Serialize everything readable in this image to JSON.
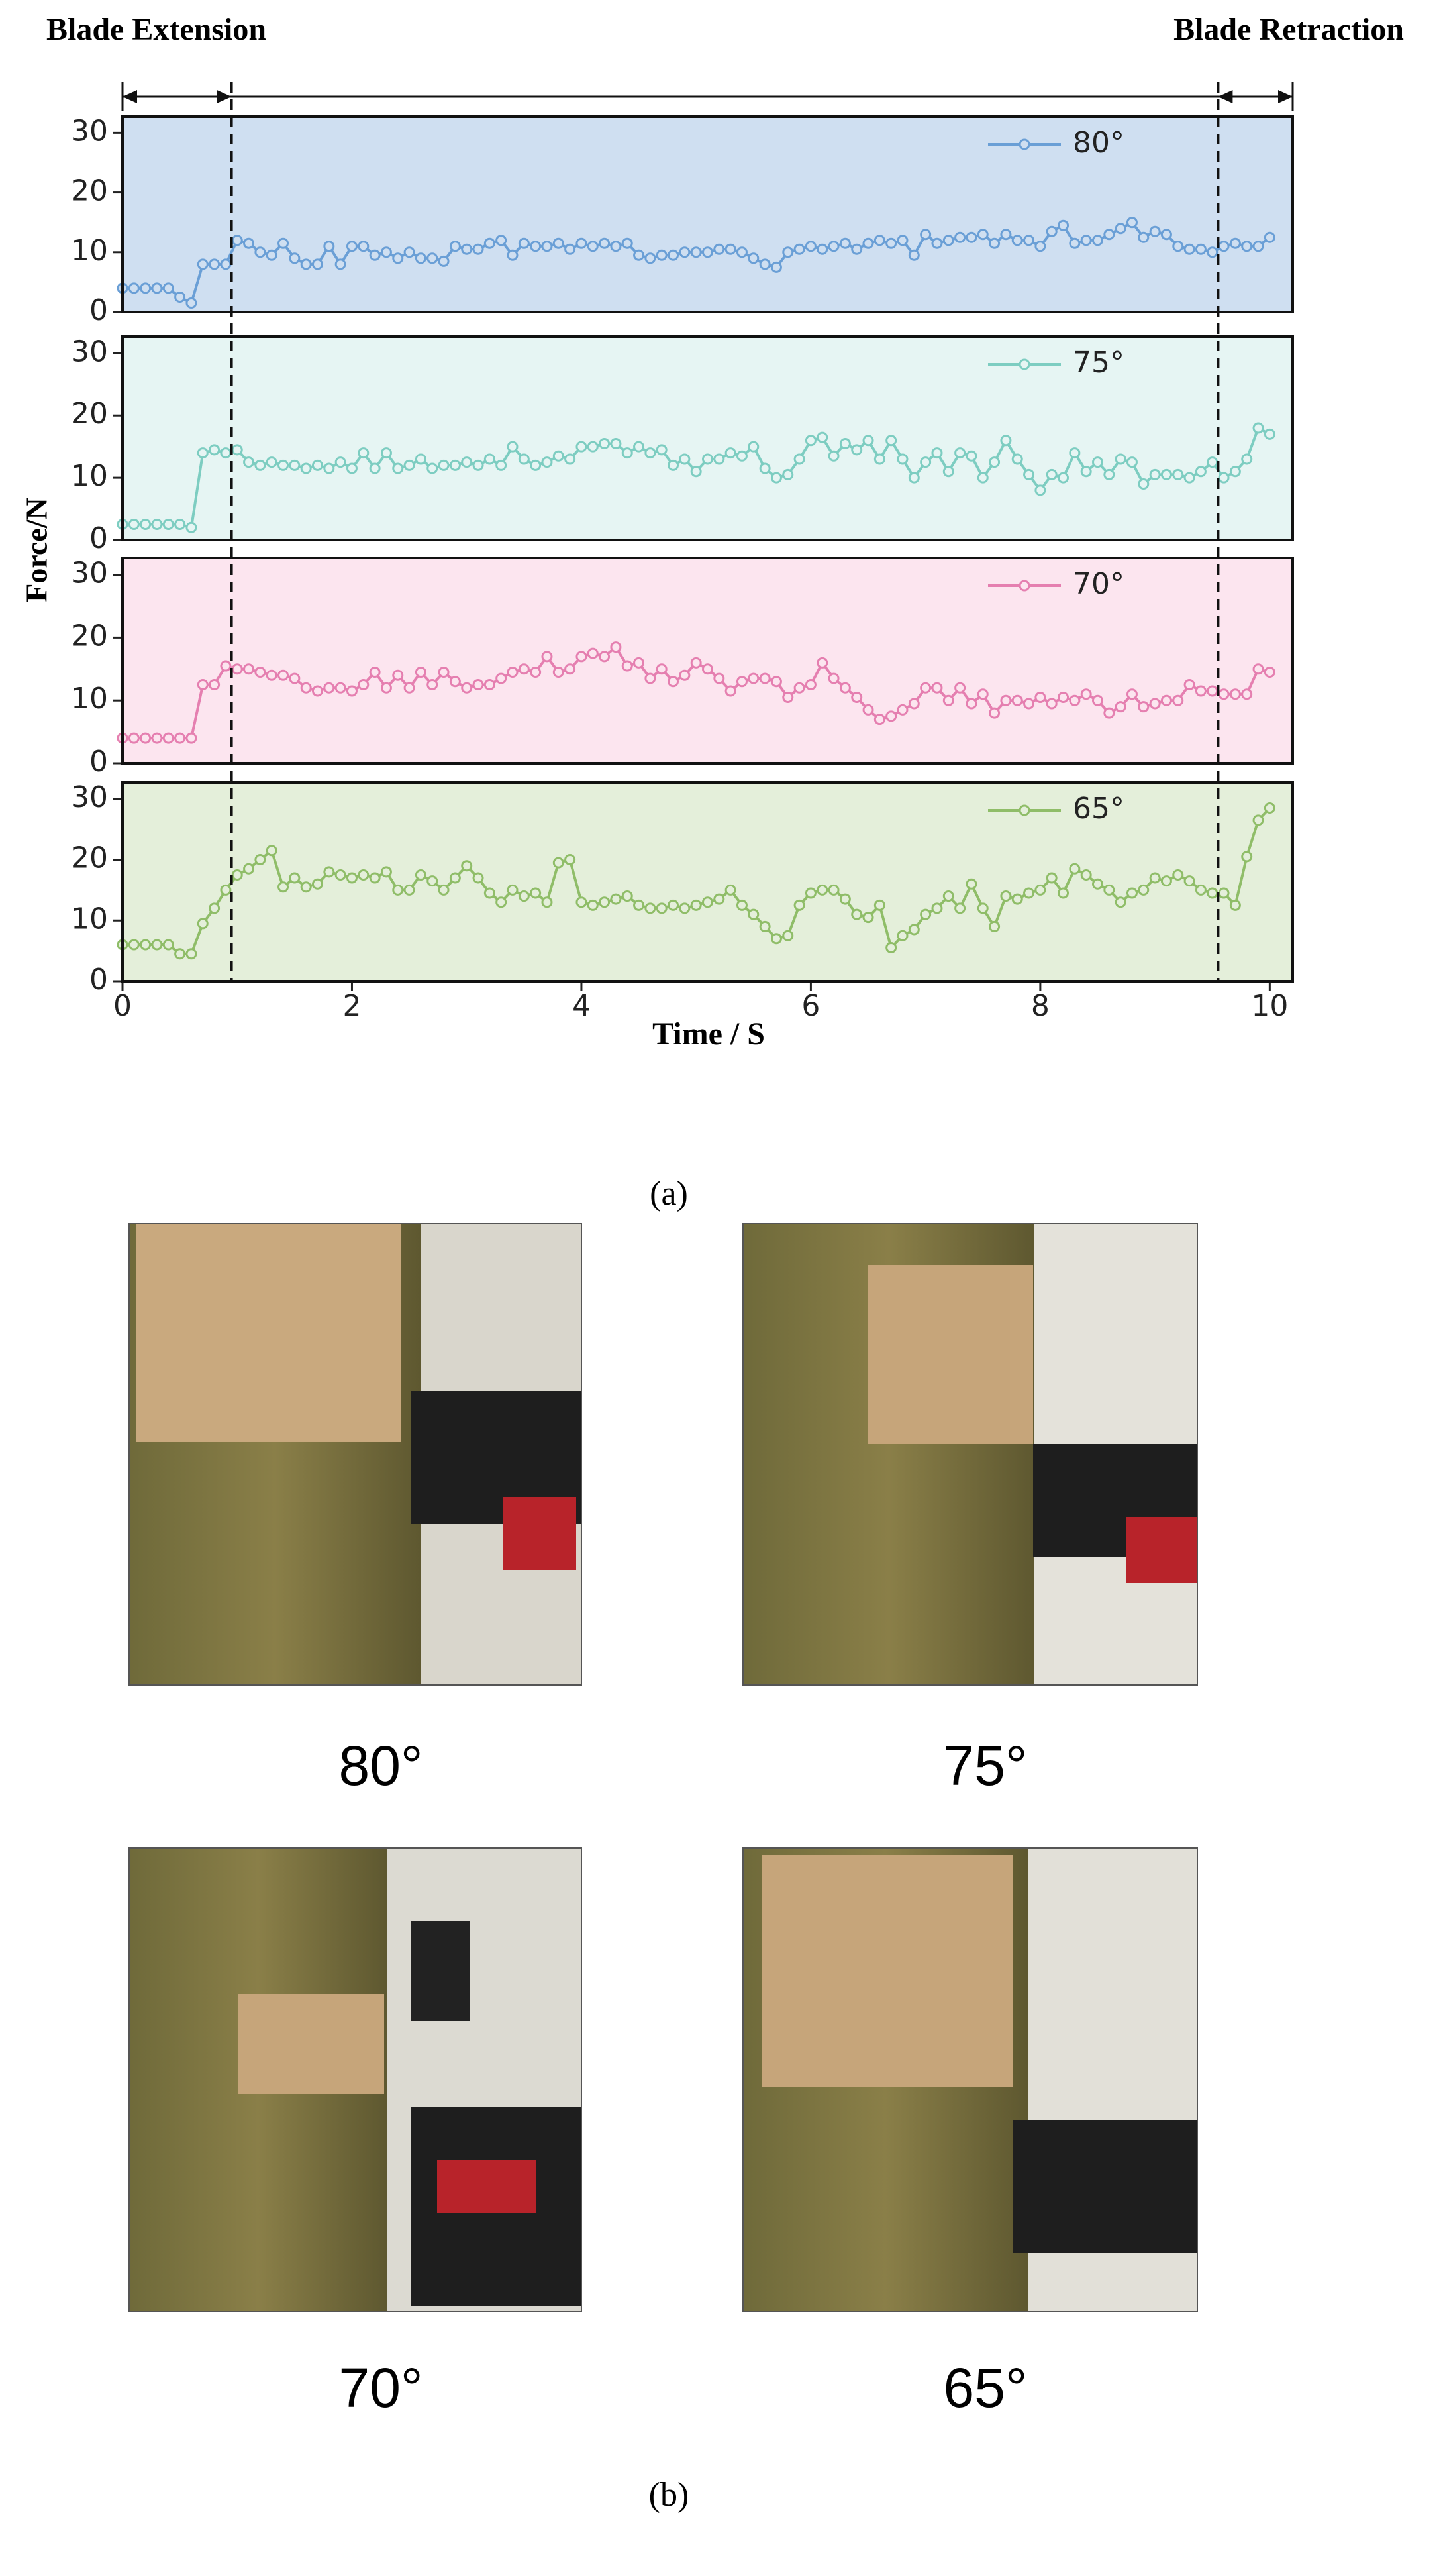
{
  "chart_data": [
    {
      "type": "line",
      "ylim": [
        0,
        32.7
      ],
      "yticks": [
        0,
        10,
        20,
        30
      ],
      "xlim": [
        0,
        10.2
      ],
      "legend": "upper right",
      "background": "#cfdff1",
      "x": [
        0,
        0.1,
        0.2,
        0.3,
        0.4,
        0.5,
        0.6,
        0.7,
        0.8,
        0.9,
        1,
        1.1,
        1.2,
        1.3,
        1.4,
        1.5,
        1.6,
        1.7,
        1.8,
        1.9,
        2,
        2.1,
        2.2,
        2.3,
        2.4,
        2.5,
        2.6,
        2.7,
        2.8,
        2.9,
        3,
        3.1,
        3.2,
        3.3,
        3.4,
        3.5,
        3.6,
        3.7,
        3.8,
        3.9,
        4,
        4.1,
        4.2,
        4.3,
        4.4,
        4.5,
        4.6,
        4.7,
        4.8,
        4.9,
        5,
        5.1,
        5.2,
        5.3,
        5.4,
        5.5,
        5.6,
        5.7,
        5.8,
        5.9,
        6,
        6.1,
        6.2,
        6.3,
        6.4,
        6.5,
        6.6,
        6.7,
        6.8,
        6.9,
        7,
        7.1,
        7.2,
        7.3,
        7.4,
        7.5,
        7.6,
        7.7,
        7.8,
        7.9,
        8,
        8.1,
        8.2,
        8.3,
        8.4,
        8.5,
        8.6,
        8.7,
        8.8,
        8.9,
        9,
        9.1,
        9.2,
        9.3,
        9.4,
        9.5,
        9.6,
        9.7,
        9.8,
        9.9,
        10
      ],
      "series": [
        {
          "name": "80°",
          "color": "#6a9fd6",
          "values": [
            4,
            4,
            4,
            4,
            4,
            2.5,
            1.5,
            8,
            8,
            8,
            12,
            11.5,
            10,
            9.5,
            11.5,
            9,
            8,
            8,
            11,
            8,
            11,
            11,
            9.5,
            10,
            9,
            10,
            9,
            9,
            8.5,
            11,
            10.5,
            10.5,
            11.5,
            12,
            9.5,
            11.5,
            11,
            11,
            11.5,
            10.5,
            11.5,
            11,
            11.5,
            11,
            11.5,
            9.5,
            9,
            9.5,
            9.5,
            10,
            10,
            10,
            10.5,
            10.5,
            10,
            9,
            8,
            7.5,
            10,
            10.5,
            11,
            10.5,
            11,
            11.5,
            10.5,
            11.5,
            12,
            11.5,
            12,
            9.5,
            13,
            11.5,
            12,
            12.5,
            12.5,
            13,
            11.5,
            13,
            12,
            12,
            11,
            13.5,
            14.5,
            11.5,
            12,
            12,
            13,
            14,
            15,
            12.5,
            13.5,
            13,
            11,
            10.5,
            10.5,
            10,
            11,
            11.5,
            11,
            11,
            12.5
          ]
        }
      ]
    },
    {
      "type": "line",
      "ylim": [
        0,
        32.7
      ],
      "yticks": [
        0,
        10,
        20,
        30
      ],
      "xlim": [
        0,
        10.2
      ],
      "legend": "upper right",
      "background": "#e6f5f3",
      "x": [
        0,
        0.1,
        0.2,
        0.3,
        0.4,
        0.5,
        0.6,
        0.7,
        0.8,
        0.9,
        1,
        1.1,
        1.2,
        1.3,
        1.4,
        1.5,
        1.6,
        1.7,
        1.8,
        1.9,
        2,
        2.1,
        2.2,
        2.3,
        2.4,
        2.5,
        2.6,
        2.7,
        2.8,
        2.9,
        3,
        3.1,
        3.2,
        3.3,
        3.4,
        3.5,
        3.6,
        3.7,
        3.8,
        3.9,
        4,
        4.1,
        4.2,
        4.3,
        4.4,
        4.5,
        4.6,
        4.7,
        4.8,
        4.9,
        5,
        5.1,
        5.2,
        5.3,
        5.4,
        5.5,
        5.6,
        5.7,
        5.8,
        5.9,
        6,
        6.1,
        6.2,
        6.3,
        6.4,
        6.5,
        6.6,
        6.7,
        6.8,
        6.9,
        7,
        7.1,
        7.2,
        7.3,
        7.4,
        7.5,
        7.6,
        7.7,
        7.8,
        7.9,
        8,
        8.1,
        8.2,
        8.3,
        8.4,
        8.5,
        8.6,
        8.7,
        8.8,
        8.9,
        9,
        9.1,
        9.2,
        9.3,
        9.4,
        9.5,
        9.6,
        9.7,
        9.8,
        9.9,
        10
      ],
      "series": [
        {
          "name": "75°",
          "color": "#7dcdc1",
          "values": [
            2.5,
            2.5,
            2.5,
            2.5,
            2.5,
            2.5,
            2,
            14,
            14.5,
            14,
            14.5,
            12.5,
            12,
            12.5,
            12,
            12,
            11.5,
            12,
            11.5,
            12.5,
            11.5,
            14,
            11.5,
            14,
            11.5,
            12,
            13,
            11.5,
            12,
            12,
            12.5,
            12,
            13,
            12,
            15,
            13,
            12,
            12.5,
            13.5,
            13,
            15,
            15,
            15.5,
            15.5,
            14,
            15,
            14,
            14.5,
            12,
            13,
            11,
            13,
            13,
            14,
            13.5,
            15,
            11.5,
            10,
            10.5,
            13,
            16,
            16.5,
            13.5,
            15.5,
            14.5,
            16,
            13,
            16,
            13,
            10,
            12.5,
            14,
            11,
            14,
            13.5,
            10,
            12.5,
            16,
            13,
            10.5,
            8,
            10.5,
            10,
            14,
            11,
            12.5,
            10.5,
            13,
            12.5,
            9,
            10.5,
            10.5,
            10.5,
            10,
            11,
            12.5,
            10,
            11,
            13,
            18,
            17
          ]
        }
      ]
    },
    {
      "type": "line",
      "ylim": [
        0,
        32.7
      ],
      "yticks": [
        0,
        10,
        20,
        30
      ],
      "xlim": [
        0,
        10.2
      ],
      "legend": "upper right",
      "background": "#fce5ef",
      "x": [
        0,
        0.1,
        0.2,
        0.3,
        0.4,
        0.5,
        0.6,
        0.7,
        0.8,
        0.9,
        1,
        1.1,
        1.2,
        1.3,
        1.4,
        1.5,
        1.6,
        1.7,
        1.8,
        1.9,
        2,
        2.1,
        2.2,
        2.3,
        2.4,
        2.5,
        2.6,
        2.7,
        2.8,
        2.9,
        3,
        3.1,
        3.2,
        3.3,
        3.4,
        3.5,
        3.6,
        3.7,
        3.8,
        3.9,
        4,
        4.1,
        4.2,
        4.3,
        4.4,
        4.5,
        4.6,
        4.7,
        4.8,
        4.9,
        5,
        5.1,
        5.2,
        5.3,
        5.4,
        5.5,
        5.6,
        5.7,
        5.8,
        5.9,
        6,
        6.1,
        6.2,
        6.3,
        6.4,
        6.5,
        6.6,
        6.7,
        6.8,
        6.9,
        7,
        7.1,
        7.2,
        7.3,
        7.4,
        7.5,
        7.6,
        7.7,
        7.8,
        7.9,
        8,
        8.1,
        8.2,
        8.3,
        8.4,
        8.5,
        8.6,
        8.7,
        8.8,
        8.9,
        9,
        9.1,
        9.2,
        9.3,
        9.4,
        9.5,
        9.6,
        9.7,
        9.8,
        9.9,
        10
      ],
      "series": [
        {
          "name": "70°",
          "color": "#e57fb0",
          "values": [
            4,
            4,
            4,
            4,
            4,
            4,
            4,
            12.5,
            12.5,
            15.5,
            15,
            15,
            14.5,
            14,
            14,
            13.5,
            12,
            11.5,
            12,
            12,
            11.5,
            12.5,
            14.5,
            12,
            14,
            12,
            14.5,
            12.5,
            14.5,
            13,
            12,
            12.5,
            12.5,
            13.5,
            14.5,
            15,
            14.5,
            17,
            14.5,
            15,
            17,
            17.5,
            17,
            18.5,
            15.5,
            16,
            13.5,
            15,
            13,
            14,
            16,
            15,
            13.5,
            11.5,
            13,
            13.5,
            13.5,
            13,
            10.5,
            12,
            12.5,
            16,
            13.5,
            12,
            10.5,
            8.5,
            7,
            7.5,
            8.5,
            9.5,
            12,
            12,
            10,
            12,
            9.5,
            11,
            8,
            10,
            10,
            9.5,
            10.5,
            9.5,
            10.5,
            10,
            11,
            10,
            8,
            9,
            11,
            9,
            9.5,
            10,
            10,
            12.5,
            11.5,
            11.5,
            11,
            11,
            11,
            15,
            14.5
          ]
        }
      ]
    },
    {
      "type": "line",
      "ylim": [
        0,
        32.7
      ],
      "yticks": [
        0,
        10,
        20,
        30
      ],
      "xlim": [
        0,
        10.2
      ],
      "xticks": [
        0,
        2,
        4,
        6,
        8,
        10
      ],
      "legend": "upper right",
      "background": "#e4efda",
      "x": [
        0,
        0.1,
        0.2,
        0.3,
        0.4,
        0.5,
        0.6,
        0.7,
        0.8,
        0.9,
        1,
        1.1,
        1.2,
        1.3,
        1.4,
        1.5,
        1.6,
        1.7,
        1.8,
        1.9,
        2,
        2.1,
        2.2,
        2.3,
        2.4,
        2.5,
        2.6,
        2.7,
        2.8,
        2.9,
        3,
        3.1,
        3.2,
        3.3,
        3.4,
        3.5,
        3.6,
        3.7,
        3.8,
        3.9,
        4,
        4.1,
        4.2,
        4.3,
        4.4,
        4.5,
        4.6,
        4.7,
        4.8,
        4.9,
        5,
        5.1,
        5.2,
        5.3,
        5.4,
        5.5,
        5.6,
        5.7,
        5.8,
        5.9,
        6,
        6.1,
        6.2,
        6.3,
        6.4,
        6.5,
        6.6,
        6.7,
        6.8,
        6.9,
        7,
        7.1,
        7.2,
        7.3,
        7.4,
        7.5,
        7.6,
        7.7,
        7.8,
        7.9,
        8,
        8.1,
        8.2,
        8.3,
        8.4,
        8.5,
        8.6,
        8.7,
        8.8,
        8.9,
        9,
        9.1,
        9.2,
        9.3,
        9.4,
        9.5,
        9.6,
        9.7,
        9.8,
        9.9,
        10
      ],
      "series": [
        {
          "name": "65°",
          "color": "#8fbd68",
          "values": [
            6,
            6,
            6,
            6,
            6,
            4.5,
            4.5,
            9.5,
            12,
            15,
            17.5,
            18.5,
            20,
            21.5,
            15.5,
            17,
            15.5,
            16,
            18,
            17.5,
            17,
            17.5,
            17,
            18,
            15,
            15,
            17.5,
            16.5,
            15,
            17,
            19,
            17,
            14.5,
            13,
            15,
            14,
            14.5,
            13,
            19.5,
            20,
            13,
            12.5,
            13,
            13.5,
            14,
            12.5,
            12,
            12,
            12.5,
            12,
            12.5,
            13,
            13.5,
            15,
            12.5,
            11,
            9,
            7,
            7.5,
            12.5,
            14.5,
            15,
            15,
            13.5,
            11,
            10.5,
            12.5,
            5.5,
            7.5,
            8.5,
            11,
            12,
            14,
            12,
            16,
            12,
            9,
            14,
            13.5,
            14.5,
            15,
            17,
            14.5,
            18.5,
            17.5,
            16,
            15,
            13,
            14.5,
            15,
            17,
            16.5,
            17.5,
            16.5,
            15,
            14.5,
            14.5,
            12.5,
            20.5,
            26.5,
            28.5
          ]
        }
      ]
    }
  ],
  "figure": {
    "ylabel": "Force/N",
    "xlabel": "Time / S",
    "vlines": [
      0.95,
      9.55
    ],
    "annotations": [
      "Blade Extension",
      "Blade Retraction"
    ],
    "caption_a": "(a)",
    "caption_b": "(b)",
    "photos": [
      {
        "label": "80°"
      },
      {
        "label": "75°"
      },
      {
        "label": "70°"
      },
      {
        "label": "65°"
      }
    ]
  }
}
